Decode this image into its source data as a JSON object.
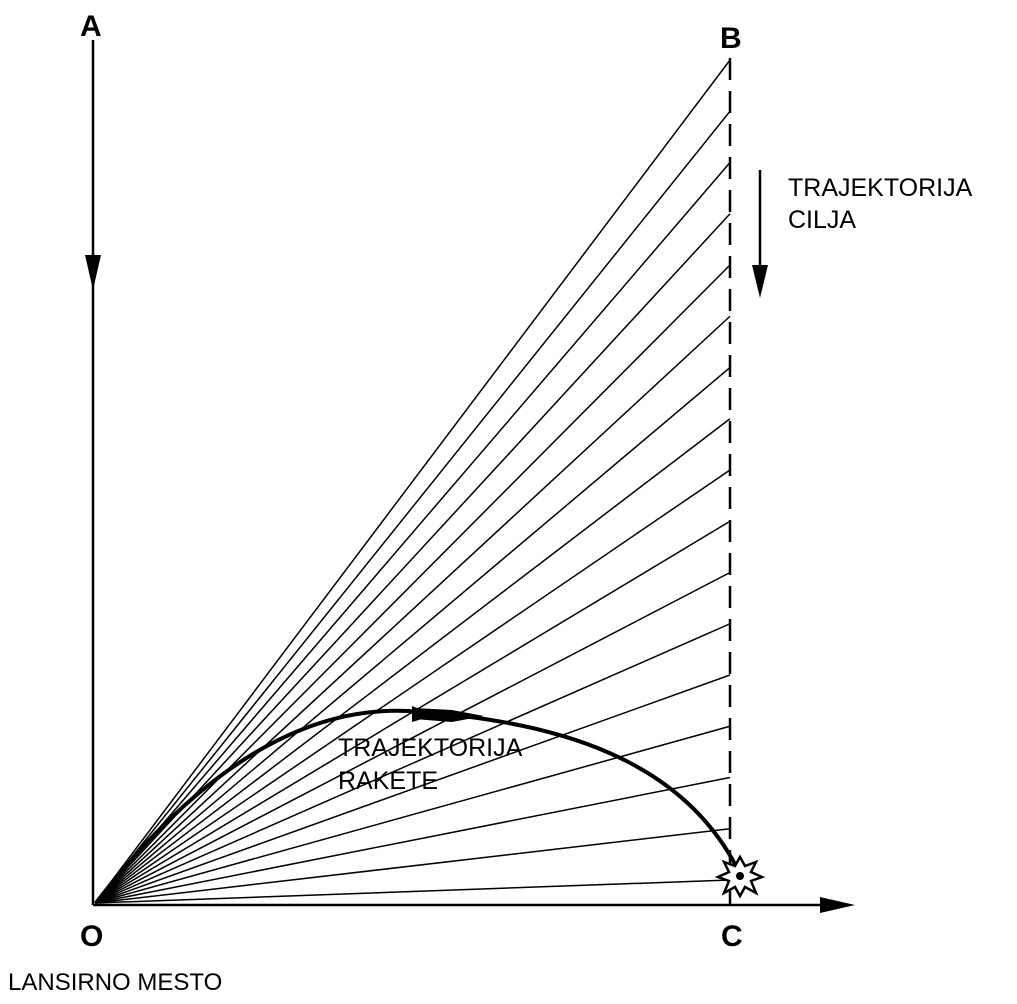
{
  "points": {
    "a": "A",
    "b": "B",
    "c": "C",
    "o": "O"
  },
  "labels": {
    "target_trajectory_line1": "TRAJEKTORIJA",
    "target_trajectory_line2": "CILJA",
    "missile_trajectory_line1": "TRAJEKTORIJA",
    "missile_trajectory_line2": "RAKETE",
    "launch_site": "LANSIRNO MESTO"
  },
  "colors": {
    "ink": "#000000",
    "background": "#ffffff"
  },
  "sight_line_count": 17
}
